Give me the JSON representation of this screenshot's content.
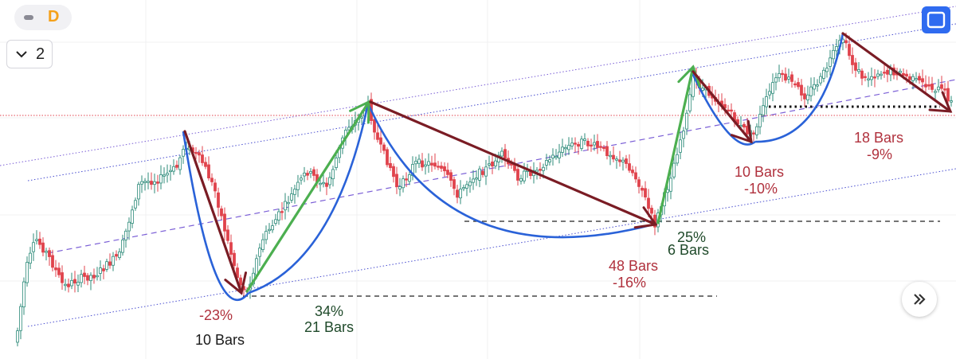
{
  "toolbar": {
    "interval_letter": "D",
    "layout_count": "2"
  },
  "icons": {
    "collapse": "dash-icon",
    "layout_toggle": "chevron-down-icon",
    "fullscreen": "fullscreen-icon",
    "scroll_right": "double-chevron-right-icon"
  },
  "colors": {
    "candle_up": "#2e8b7a",
    "candle_down": "#e0434c",
    "arrow_down": "#7a1c24",
    "arrow_up": "#4caf50",
    "curve": "#2a62d8",
    "channel": "#7b5fd6",
    "price_line": "#e0434c",
    "fullscreen_button": "#2f6bf0",
    "interval_accent": "#f5a11a"
  },
  "annotations": [
    {
      "id": "drop1_pct",
      "text": "-23%",
      "color": "red"
    },
    {
      "id": "drop1_bars",
      "text": "10 Bars",
      "color": "dark"
    },
    {
      "id": "rise1_pct",
      "text": "34%",
      "color": "green"
    },
    {
      "id": "rise1_bars",
      "text": "21 Bars",
      "color": "green"
    },
    {
      "id": "drop2_bars",
      "text": "48 Bars",
      "color": "red"
    },
    {
      "id": "drop2_pct",
      "text": "-16%",
      "color": "red"
    },
    {
      "id": "rise2_pct",
      "text": "25%",
      "color": "green"
    },
    {
      "id": "rise2_bars",
      "text": "6 Bars",
      "color": "green"
    },
    {
      "id": "drop3_bars",
      "text": "10 Bars",
      "color": "red"
    },
    {
      "id": "drop3_pct",
      "text": "-10%",
      "color": "red"
    },
    {
      "id": "drop4_bars",
      "text": "18 Bars",
      "color": "red"
    },
    {
      "id": "drop4_pct",
      "text": "-9%",
      "color": "red"
    }
  ],
  "chart_data": {
    "type": "candlestick",
    "title": "",
    "xlabel": "",
    "ylabel": "",
    "interval": "D",
    "grid": true,
    "legend": "none",
    "moves": [
      {
        "direction": "down",
        "percent": -23,
        "bars": 10
      },
      {
        "direction": "up",
        "percent": 34,
        "bars": 21
      },
      {
        "direction": "down",
        "percent": -16,
        "bars": 48
      },
      {
        "direction": "up",
        "percent": 25,
        "bars": 6
      },
      {
        "direction": "down",
        "percent": -10,
        "bars": 10
      },
      {
        "direction": "down",
        "percent": -9,
        "bars": 18
      }
    ]
  }
}
